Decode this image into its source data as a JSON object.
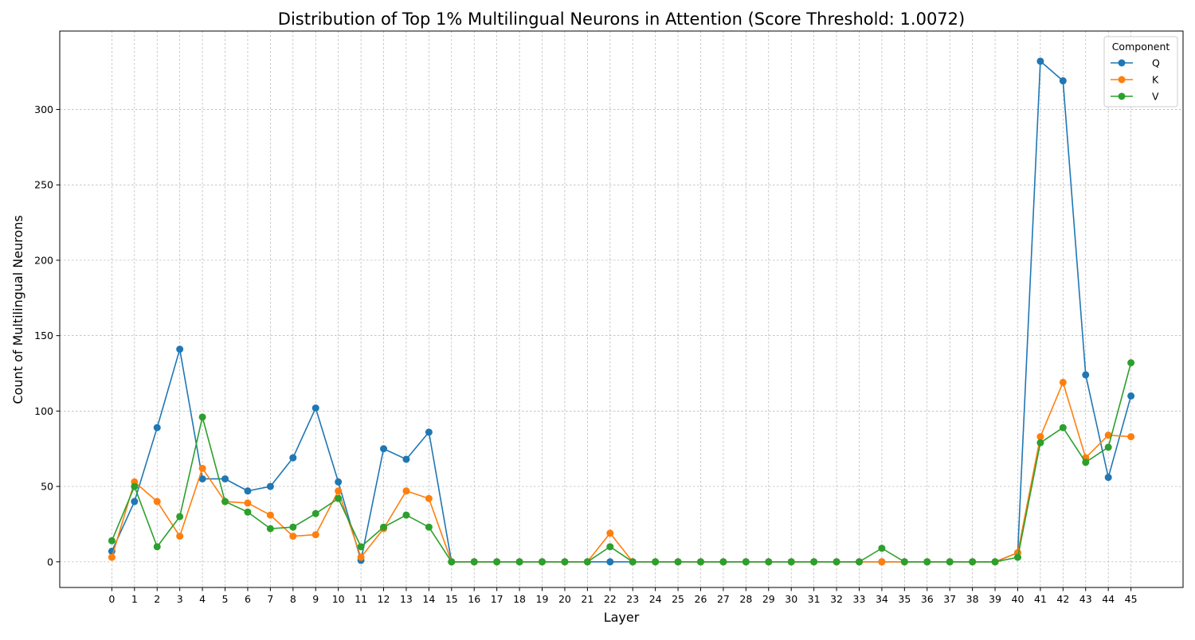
{
  "chart_data": {
    "type": "line",
    "title": "Distribution of Top 1% Multilingual Neurons in Attention (Score Threshold: 1.0072)",
    "xlabel": "Layer",
    "ylabel": "Count of Multilingual Neurons",
    "x": [
      0,
      1,
      2,
      3,
      4,
      5,
      6,
      7,
      8,
      9,
      10,
      11,
      12,
      13,
      14,
      15,
      16,
      17,
      18,
      19,
      20,
      21,
      22,
      23,
      24,
      25,
      26,
      27,
      28,
      29,
      30,
      31,
      32,
      33,
      34,
      35,
      36,
      37,
      38,
      39,
      40,
      41,
      42,
      43,
      44,
      45
    ],
    "xlim": [
      -2.3,
      47.3
    ],
    "ylim": [
      -17,
      352
    ],
    "yticks": [
      0,
      50,
      100,
      150,
      200,
      250,
      300
    ],
    "grid": true,
    "marker": "circle",
    "legend": {
      "title": "Component",
      "placement": "top-right"
    },
    "series": [
      {
        "name": "Q",
        "color": "#1f77b4",
        "values": [
          7,
          40,
          89,
          141,
          55,
          55,
          47,
          50,
          69,
          102,
          53,
          1,
          75,
          68,
          86,
          0,
          0,
          0,
          0,
          0,
          0,
          0,
          0,
          0,
          0,
          0,
          0,
          0,
          0,
          0,
          0,
          0,
          0,
          0,
          0,
          0,
          0,
          0,
          0,
          0,
          6,
          332,
          319,
          124,
          56,
          110
        ]
      },
      {
        "name": "K",
        "color": "#ff7f0e",
        "values": [
          3,
          53,
          40,
          17,
          62,
          40,
          39,
          31,
          17,
          18,
          47,
          3,
          22,
          47,
          42,
          0,
          0,
          0,
          0,
          0,
          0,
          0,
          19,
          0,
          0,
          0,
          0,
          0,
          0,
          0,
          0,
          0,
          0,
          0,
          0,
          0,
          0,
          0,
          0,
          0,
          6,
          83,
          119,
          69,
          84,
          83
        ]
      },
      {
        "name": "V",
        "color": "#2ca02c",
        "values": [
          14,
          50,
          10,
          30,
          96,
          40,
          33,
          22,
          23,
          32,
          42,
          10,
          23,
          31,
          23,
          0,
          0,
          0,
          0,
          0,
          0,
          0,
          10,
          0,
          0,
          0,
          0,
          0,
          0,
          0,
          0,
          0,
          0,
          0,
          9,
          0,
          0,
          0,
          0,
          0,
          3,
          79,
          89,
          66,
          76,
          132
        ]
      }
    ]
  }
}
